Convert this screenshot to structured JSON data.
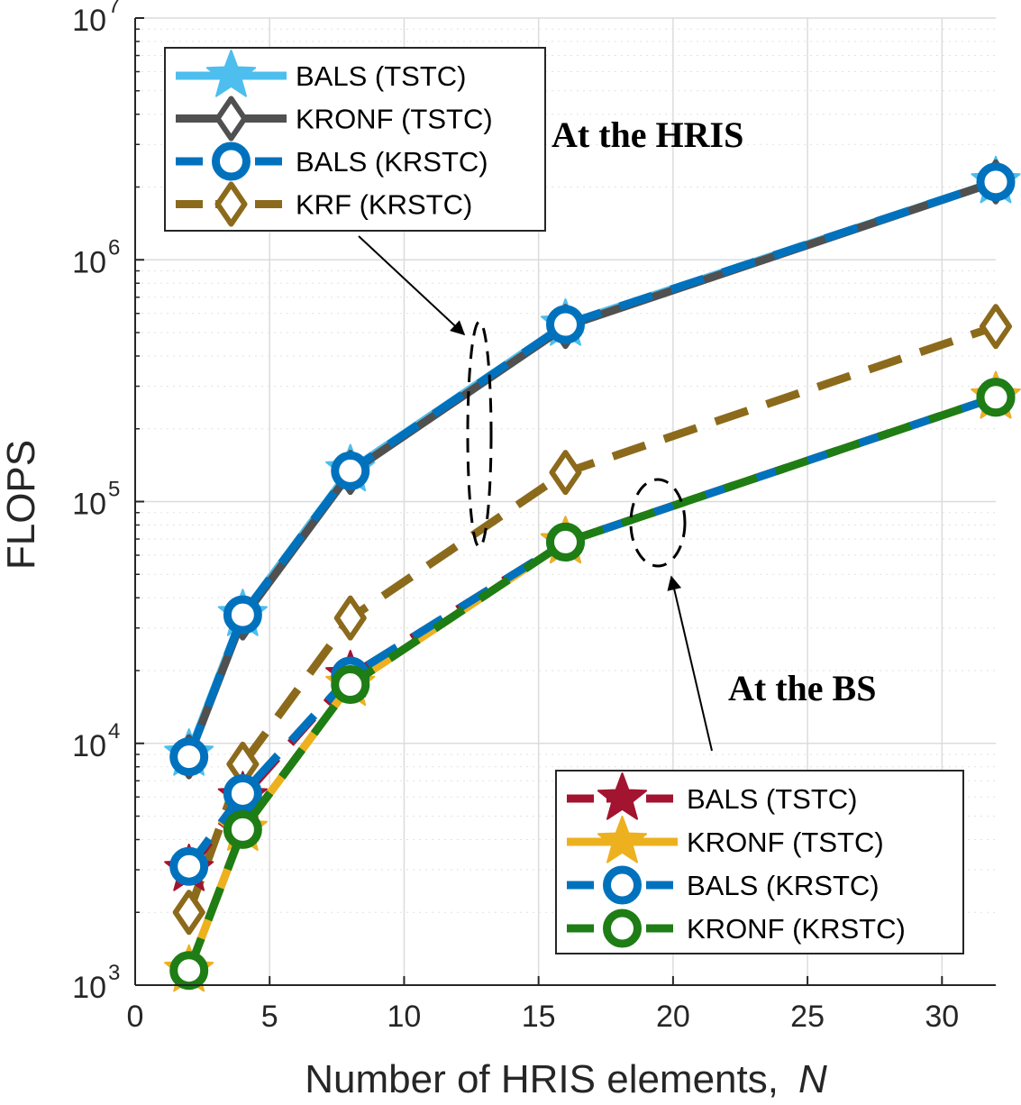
{
  "chart_data": {
    "type": "line",
    "xlabel": "Number of HRIS elements,",
    "xlabel_var": "N",
    "ylabel": "FLOPS",
    "xlim": [
      0,
      32
    ],
    "ylim": [
      1000,
      10000000
    ],
    "y_scale": "log",
    "grid": true,
    "x_ticks": [
      "0",
      "5",
      "10",
      "15",
      "20",
      "25",
      "30"
    ],
    "y_ticks": [
      {
        "base": "10",
        "exp": "3"
      },
      {
        "base": "10",
        "exp": "4"
      },
      {
        "base": "10",
        "exp": "5"
      },
      {
        "base": "10",
        "exp": "6"
      },
      {
        "base": "10",
        "exp": "7"
      }
    ],
    "x": [
      2,
      4,
      8,
      16,
      32
    ],
    "series": [
      {
        "name": "BALS (TSTC)",
        "group": "hris",
        "values": [
          9000,
          34000,
          135000,
          540000,
          2100000
        ],
        "color": "#4DBEEE",
        "dash": "solid",
        "marker": "star"
      },
      {
        "name": "KRONF (TSTC)",
        "group": "hris",
        "values": [
          8800,
          33000,
          132000,
          530000,
          2100000
        ],
        "color": "#505050",
        "dash": "solid",
        "marker": "diamond"
      },
      {
        "name": "BALS (KRSTC)",
        "group": "hris",
        "values": [
          8800,
          34000,
          134000,
          540000,
          2100000
        ],
        "color": "#0072BD",
        "dash": "dashed",
        "marker": "circle"
      },
      {
        "name": "KRF (KRSTC)",
        "group": "hris",
        "values": [
          2000,
          8200,
          33000,
          132000,
          530000
        ],
        "color": "#8C6A1C",
        "dash": "dashed",
        "marker": "diamond"
      },
      {
        "name": "BALS (TSTC)",
        "group": "bs",
        "values": [
          3000,
          6000,
          19000,
          68000,
          270000
        ],
        "color": "#A2142F",
        "dash": "dashed",
        "marker": "star"
      },
      {
        "name": "KRONF (TSTC)",
        "group": "bs",
        "values": [
          1150,
          4400,
          17500,
          68000,
          270000
        ],
        "color": "#EDB120",
        "dash": "solid",
        "marker": "star"
      },
      {
        "name": "BALS (KRSTC)",
        "group": "bs",
        "values": [
          3100,
          6200,
          19000,
          68000,
          270000
        ],
        "color": "#0072BD",
        "dash": "dashed",
        "marker": "circle"
      },
      {
        "name": "KRONF (KRSTC)",
        "group": "bs",
        "values": [
          1150,
          4400,
          17500,
          68000,
          270000
        ],
        "color": "#1E7D14",
        "dash": "dashed",
        "marker": "circle"
      }
    ],
    "annotations": [
      "At the HRIS",
      "At the BS"
    ],
    "legends": [
      {
        "placement": "top-left",
        "group": "hris"
      },
      {
        "placement": "bottom-right",
        "group": "bs"
      }
    ]
  }
}
